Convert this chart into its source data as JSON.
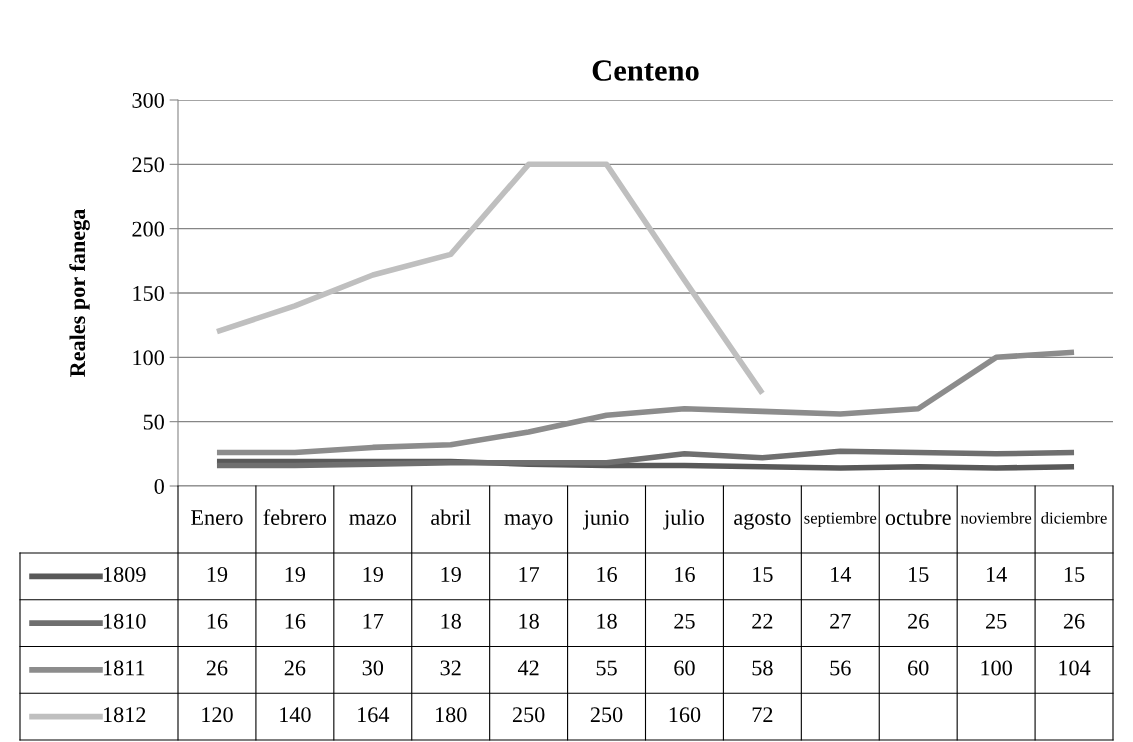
{
  "chart_data": {
    "type": "line",
    "title": "Centeno",
    "ylabel": "Reales por fanega",
    "categories": [
      "Enero",
      "febrero",
      "mazo",
      "abril",
      "mayo",
      "junio",
      "julio",
      "agosto",
      "septiembre",
      "octubre",
      "noviembre",
      "diciembre"
    ],
    "series": [
      {
        "name": "1809",
        "color": "#595959",
        "values": [
          19,
          19,
          19,
          19,
          17,
          16,
          16,
          15,
          14,
          15,
          14,
          15
        ]
      },
      {
        "name": "1810",
        "color": "#6f6f6f",
        "values": [
          16,
          16,
          17,
          18,
          18,
          18,
          25,
          22,
          27,
          26,
          25,
          26
        ]
      },
      {
        "name": "1811",
        "color": "#8c8c8c",
        "values": [
          26,
          26,
          30,
          32,
          42,
          55,
          60,
          58,
          56,
          60,
          100,
          104
        ]
      },
      {
        "name": "1812",
        "color": "#bfbfbf",
        "values": [
          120,
          140,
          164,
          180,
          250,
          250,
          160,
          72,
          null,
          null,
          null,
          null
        ]
      }
    ],
    "ylim": [
      0,
      300
    ],
    "yticks": [
      0,
      50,
      100,
      150,
      200,
      250,
      300
    ],
    "grid": "y",
    "data_labels": true,
    "legend": "bottom left",
    "marker": "none",
    "line_style": "solid"
  }
}
